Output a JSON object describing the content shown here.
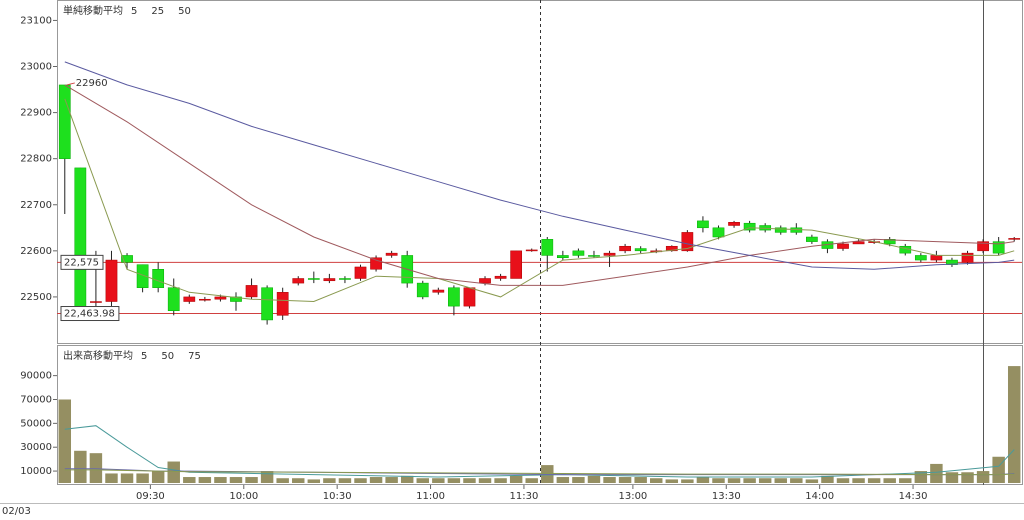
{
  "chart_data": [
    {
      "type": "candlestick",
      "legend_title": "単純移動平均",
      "up_color": "#e8101a",
      "down_color": "#1ee01e",
      "open": [
        22960,
        22780,
        22490,
        22490,
        22590,
        22570,
        22560,
        22520,
        22490,
        22495,
        22495,
        22500,
        22500,
        22520,
        22460,
        22530,
        22540,
        22535,
        22540,
        22540,
        22560,
        22590,
        22590,
        22530,
        22510,
        22520,
        22480,
        22530,
        22540,
        22540,
        22600,
        22625,
        22590,
        22600,
        22590,
        22590,
        22600,
        22605,
        22600,
        22600,
        22600,
        22665,
        22650,
        22655,
        22660,
        22655,
        22650,
        22650,
        22630,
        22620,
        22605,
        22615,
        22620,
        22625,
        22610,
        22590,
        22580,
        22580,
        22575,
        22600,
        22620,
        22625
      ],
      "high": [
        22960,
        22780,
        22600,
        22600,
        22595,
        22570,
        22575,
        22540,
        22505,
        22500,
        22505,
        22510,
        22540,
        22525,
        22520,
        22545,
        22555,
        22550,
        22545,
        22570,
        22590,
        22600,
        22600,
        22535,
        22520,
        22525,
        22520,
        22545,
        22550,
        22600,
        22605,
        22630,
        22600,
        22605,
        22600,
        22600,
        22615,
        22610,
        22605,
        22612,
        22645,
        22675,
        22655,
        22665,
        22665,
        22660,
        22655,
        22660,
        22635,
        22625,
        22620,
        22625,
        22625,
        22630,
        22615,
        22595,
        22600,
        22585,
        22600,
        22625,
        22630,
        22630
      ],
      "low": [
        22680,
        22450,
        22460,
        22480,
        22560,
        22510,
        22510,
        22460,
        22485,
        22490,
        22490,
        22470,
        22495,
        22440,
        22450,
        22525,
        22530,
        22530,
        22530,
        22535,
        22555,
        22585,
        22520,
        22495,
        22505,
        22460,
        22475,
        22525,
        22535,
        22540,
        22598,
        22555,
        22580,
        22585,
        22585,
        22565,
        22595,
        22595,
        22595,
        22598,
        22598,
        22640,
        22625,
        22650,
        22640,
        22640,
        22635,
        22635,
        22615,
        22595,
        22600,
        22615,
        22615,
        22610,
        22590,
        22575,
        22575,
        22565,
        22570,
        22595,
        22590,
        22620
      ],
      "close": [
        22800,
        22460,
        22490,
        22580,
        22575,
        22520,
        22520,
        22470,
        22500,
        22495,
        22500,
        22490,
        22525,
        22450,
        22510,
        22540,
        22538,
        22540,
        22538,
        22565,
        22585,
        22595,
        22530,
        22500,
        22515,
        22480,
        22520,
        22540,
        22545,
        22600,
        22602,
        22590,
        22585,
        22590,
        22588,
        22595,
        22610,
        22600,
        22600,
        22610,
        22640,
        22650,
        22630,
        22662,
        22645,
        22645,
        22640,
        22640,
        22620,
        22605,
        22615,
        22620,
        22620,
        22615,
        22595,
        22580,
        22590,
        22570,
        22595,
        22620,
        22595,
        22627
      ],
      "ma_x": [
        0,
        4,
        8,
        12,
        16,
        20,
        24,
        28,
        32,
        36,
        40,
        44,
        48,
        52,
        56,
        60,
        61
      ],
      "series": [
        {
          "name": "5",
          "color": "#8a9a50",
          "values": [
            22930,
            22560,
            22510,
            22495,
            22490,
            22545,
            22540,
            22500,
            22580,
            22590,
            22605,
            22650,
            22645,
            22620,
            22590,
            22590,
            22600
          ]
        },
        {
          "name": "25",
          "color": "#a05a5e",
          "values": [
            22960,
            22880,
            22790,
            22700,
            22630,
            22580,
            22540,
            22525,
            22525,
            22545,
            22565,
            22590,
            22610,
            22625,
            22620,
            22615,
            22620
          ]
        },
        {
          "name": "50",
          "color": "#5a5aa0",
          "values": [
            23010,
            22960,
            22920,
            22870,
            22830,
            22790,
            22750,
            22710,
            22675,
            22645,
            22615,
            22590,
            22565,
            22560,
            22570,
            22575,
            22580
          ]
        }
      ],
      "hlines": [
        {
          "value": 22575,
          "label": "22,575"
        },
        {
          "value": 22463.98,
          "label": "22,463.98"
        }
      ],
      "high_marker": 22960,
      "ylim": [
        22400,
        23140
      ],
      "yticks": [
        22500,
        22600,
        22700,
        22800,
        22900,
        23000,
        23100
      ],
      "xlim": [
        -0.5,
        61.5
      ],
      "xticks": [
        {
          "value": 5.5,
          "label": "09:30"
        },
        {
          "value": 11.5,
          "label": "10:00"
        },
        {
          "value": 17.5,
          "label": "10:30"
        },
        {
          "value": 23.5,
          "label": "11:00"
        },
        {
          "value": 29.5,
          "label": "11:30"
        },
        {
          "value": 36.5,
          "label": "13:00"
        },
        {
          "value": 42.5,
          "label": "13:30"
        },
        {
          "value": 48.5,
          "label": "14:00"
        },
        {
          "value": 54.5,
          "label": "14:30"
        }
      ],
      "date": "02/03",
      "legend": "top-left"
    },
    {
      "type": "bar",
      "legend_title": "出来高移動平均",
      "color": "#958f62",
      "values": [
        70000,
        27000,
        25000,
        8000,
        8000,
        8000,
        10000,
        18000,
        5000,
        5000,
        5000,
        5000,
        5000,
        10000,
        4000,
        4000,
        3000,
        4000,
        4000,
        4000,
        5000,
        5000,
        6000,
        4000,
        4000,
        4000,
        4000,
        4000,
        4000,
        6000,
        4000,
        15000,
        5000,
        5000,
        6000,
        5000,
        5000,
        5000,
        4000,
        3000,
        3000,
        5000,
        4000,
        4000,
        4000,
        4000,
        4000,
        4000,
        3000,
        6000,
        4000,
        4000,
        4000,
        4000,
        4000,
        10000,
        16000,
        9000,
        9000,
        10000,
        22000,
        98000
      ],
      "ma_x": [
        0,
        2,
        4,
        6,
        8,
        16,
        24,
        32,
        40,
        48,
        56,
        60,
        61
      ],
      "series": [
        {
          "name": "5",
          "color": "#4a9a9a",
          "values": [
            45000,
            48000,
            30000,
            13000,
            9000,
            7000,
            5000,
            7000,
            5000,
            5000,
            9000,
            14000,
            28000
          ]
        },
        {
          "name": "50",
          "color": "#6a6aa8",
          "values": [
            12000,
            12000,
            11000,
            10000,
            10000,
            9000,
            8000,
            7000,
            7000,
            7000,
            7000,
            7000,
            8000
          ]
        },
        {
          "name": "75",
          "color": "#8a9a50",
          "values": [
            11000,
            11000,
            10500,
            10000,
            9500,
            9000,
            8500,
            8000,
            7500,
            7500,
            7000,
            7000,
            7500
          ]
        }
      ],
      "ylim": [
        0,
        114000
      ],
      "yticks": [
        10000,
        30000,
        50000,
        70000,
        90000
      ],
      "xlim": [
        -0.5,
        61.5
      ],
      "legend": "top-left"
    }
  ]
}
